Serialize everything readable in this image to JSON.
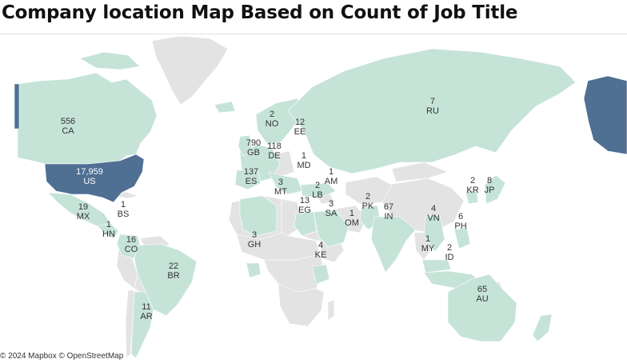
{
  "title": "Company location Map Based on Count of Job Title",
  "attribution": "© 2024 Mapbox © OpenStreetMap",
  "colors": {
    "low": "#c6e3d8",
    "high": "#4f6f93",
    "no_data": "#e3e3e3",
    "water": "#ffffff",
    "border": "#ffffff"
  },
  "locations": [
    {
      "code": "CA",
      "count": "556"
    },
    {
      "code": "US",
      "count": "17,959"
    },
    {
      "code": "MX",
      "count": "19"
    },
    {
      "code": "BS",
      "count": "1"
    },
    {
      "code": "HN",
      "count": "1"
    },
    {
      "code": "CO",
      "count": "16"
    },
    {
      "code": "BR",
      "count": "22"
    },
    {
      "code": "AR",
      "count": "11"
    },
    {
      "code": "NO",
      "count": "2"
    },
    {
      "code": "EE",
      "count": "12"
    },
    {
      "code": "GB",
      "count": "790"
    },
    {
      "code": "DE",
      "count": "118"
    },
    {
      "code": "MD",
      "count": "1"
    },
    {
      "code": "ES",
      "count": "137"
    },
    {
      "code": "MT",
      "count": "3"
    },
    {
      "code": "AM",
      "count": "1"
    },
    {
      "code": "LB",
      "count": "2"
    },
    {
      "code": "EG",
      "count": "13"
    },
    {
      "code": "SA",
      "count": "3"
    },
    {
      "code": "PK",
      "count": "2"
    },
    {
      "code": "OM",
      "count": "1"
    },
    {
      "code": "IN",
      "count": "67"
    },
    {
      "code": "GH",
      "count": "3"
    },
    {
      "code": "KE",
      "count": "4"
    },
    {
      "code": "RU",
      "count": "7"
    },
    {
      "code": "KR",
      "count": "2"
    },
    {
      "code": "JP",
      "count": "8"
    },
    {
      "code": "VN",
      "count": "4"
    },
    {
      "code": "PH",
      "count": "6"
    },
    {
      "code": "MY",
      "count": "1"
    },
    {
      "code": "ID",
      "count": "2"
    },
    {
      "code": "AU",
      "count": "65"
    }
  ]
}
